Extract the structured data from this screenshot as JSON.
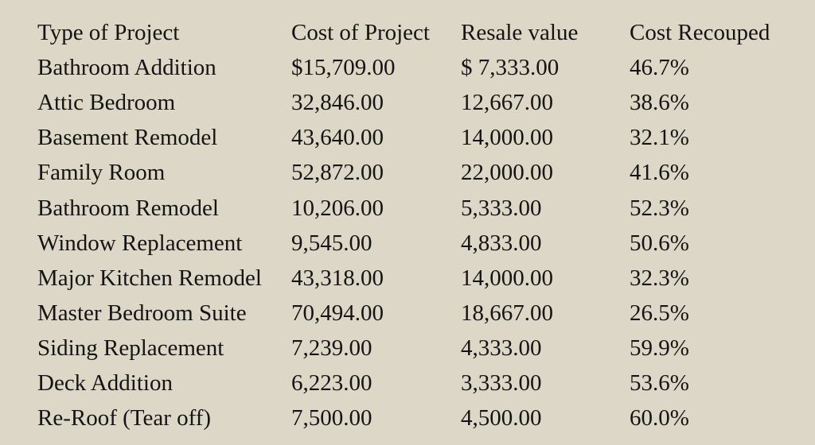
{
  "table": {
    "headers": [
      "Type of Project",
      "Cost of Project",
      "Resale value",
      "Cost Recouped"
    ],
    "rows": [
      [
        "Bathroom Addition",
        "$15,709.00",
        "$ 7,333.00",
        "46.7%"
      ],
      [
        "Attic Bedroom",
        "32,846.00",
        "12,667.00",
        "38.6%"
      ],
      [
        "Basement Remodel",
        "43,640.00",
        "14,000.00",
        "32.1%"
      ],
      [
        "Family Room",
        "52,872.00",
        "22,000.00",
        "41.6%"
      ],
      [
        "Bathroom Remodel",
        "10,206.00",
        "5,333.00",
        "52.3%"
      ],
      [
        "Window Replacement",
        "9,545.00",
        "4,833.00",
        "50.6%"
      ],
      [
        "Major Kitchen Remodel",
        "43,318.00",
        "14,000.00",
        "32.3%"
      ],
      [
        "Master Bedroom Suite",
        "70,494.00",
        "18,667.00",
        "26.5%"
      ],
      [
        "Siding Replacement",
        "7,239.00",
        "4,333.00",
        "59.9%"
      ],
      [
        "Deck Addition",
        "6,223.00",
        "3,333.00",
        "53.6%"
      ],
      [
        "Re-Roof (Tear off)",
        "7,500.00",
        "4,500.00",
        "60.0%"
      ]
    ]
  },
  "colors": {
    "background": "#dcd7c6",
    "text": "#141414"
  }
}
